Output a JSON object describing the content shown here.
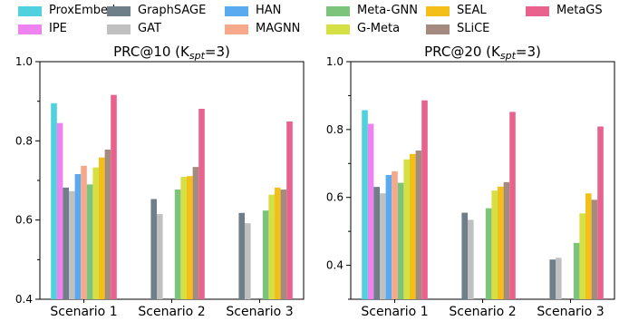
{
  "legend": [
    {
      "name": "ProxEmbed",
      "color": "#4fd1de"
    },
    {
      "name": "IPE",
      "color": "#ee82ee"
    },
    {
      "name": "GraphSAGE",
      "color": "#6e7f8a"
    },
    {
      "name": "GAT",
      "color": "#c0c0c0"
    },
    {
      "name": "HAN",
      "color": "#5aaaf0"
    },
    {
      "name": "MAGNN",
      "color": "#f5a88a"
    },
    {
      "name": "Meta-GNN",
      "color": "#7cc47c"
    },
    {
      "name": "G-Meta",
      "color": "#d4e044"
    },
    {
      "name": "SEAL",
      "color": "#f5bf1a"
    },
    {
      "name": "SLiCE",
      "color": "#a58a80"
    },
    {
      "name": "MetaGS",
      "color": "#e8628d"
    }
  ],
  "chart_data": [
    {
      "type": "bar",
      "title": "PRC@10 (K_spt=3)",
      "title_main": "PRC@10 (K",
      "title_sub": "spt",
      "title_tail": "=3)",
      "categories": [
        "Scenario 1",
        "Scenario 2",
        "Scenario 3"
      ],
      "ylim": [
        0.4,
        1.0
      ],
      "yticks": [
        "0.4",
        "0.6",
        "0.8",
        "1.0"
      ],
      "ytick_values": [
        0.4,
        0.6,
        0.8,
        1.0
      ],
      "grid": false,
      "series": [
        {
          "name": "ProxEmbed",
          "values": [
            0.895,
            null,
            null
          ]
        },
        {
          "name": "IPE",
          "values": [
            0.845,
            null,
            null
          ]
        },
        {
          "name": "GraphSAGE",
          "values": [
            0.682,
            0.653,
            0.618
          ]
        },
        {
          "name": "GAT",
          "values": [
            0.673,
            0.615,
            0.592
          ]
        },
        {
          "name": "HAN",
          "values": [
            0.716,
            null,
            null
          ]
        },
        {
          "name": "MAGNN",
          "values": [
            0.737,
            null,
            null
          ]
        },
        {
          "name": "Meta-GNN",
          "values": [
            0.69,
            0.677,
            0.624
          ]
        },
        {
          "name": "G-Meta",
          "values": [
            0.733,
            0.709,
            0.664
          ]
        },
        {
          "name": "SEAL",
          "values": [
            0.758,
            0.711,
            0.682
          ]
        },
        {
          "name": "SLiCE",
          "values": [
            0.778,
            0.734,
            0.677
          ]
        },
        {
          "name": "MetaGS",
          "values": [
            0.916,
            0.881,
            0.849
          ]
        }
      ]
    },
    {
      "type": "bar",
      "title": "PRC@20 (K_spt=3)",
      "title_main": "PRC@20 (K",
      "title_sub": "spt",
      "title_tail": "=3)",
      "categories": [
        "Scenario 1",
        "Scenario 2",
        "Scenario 3"
      ],
      "ylim": [
        0.3,
        1.0
      ],
      "yticks": [
        "0.4",
        "0.6",
        "0.8",
        "1.0"
      ],
      "ytick_values": [
        0.4,
        0.6,
        0.8,
        1.0
      ],
      "grid": false,
      "series": [
        {
          "name": "ProxEmbed",
          "values": [
            0.857,
            null,
            null
          ]
        },
        {
          "name": "IPE",
          "values": [
            0.817,
            null,
            null
          ]
        },
        {
          "name": "GraphSAGE",
          "values": [
            0.631,
            0.555,
            0.417
          ]
        },
        {
          "name": "GAT",
          "values": [
            0.612,
            0.534,
            0.422
          ]
        },
        {
          "name": "HAN",
          "values": [
            0.666,
            null,
            null
          ]
        },
        {
          "name": "MAGNN",
          "values": [
            0.677,
            null,
            null
          ]
        },
        {
          "name": "Meta-GNN",
          "values": [
            0.643,
            0.568,
            0.466
          ]
        },
        {
          "name": "G-Meta",
          "values": [
            0.712,
            0.62,
            0.553
          ]
        },
        {
          "name": "SEAL",
          "values": [
            0.728,
            0.632,
            0.612
          ]
        },
        {
          "name": "SLiCE",
          "values": [
            0.738,
            0.645,
            0.593
          ]
        },
        {
          "name": "MetaGS",
          "values": [
            0.886,
            0.852,
            0.809
          ]
        }
      ]
    }
  ]
}
